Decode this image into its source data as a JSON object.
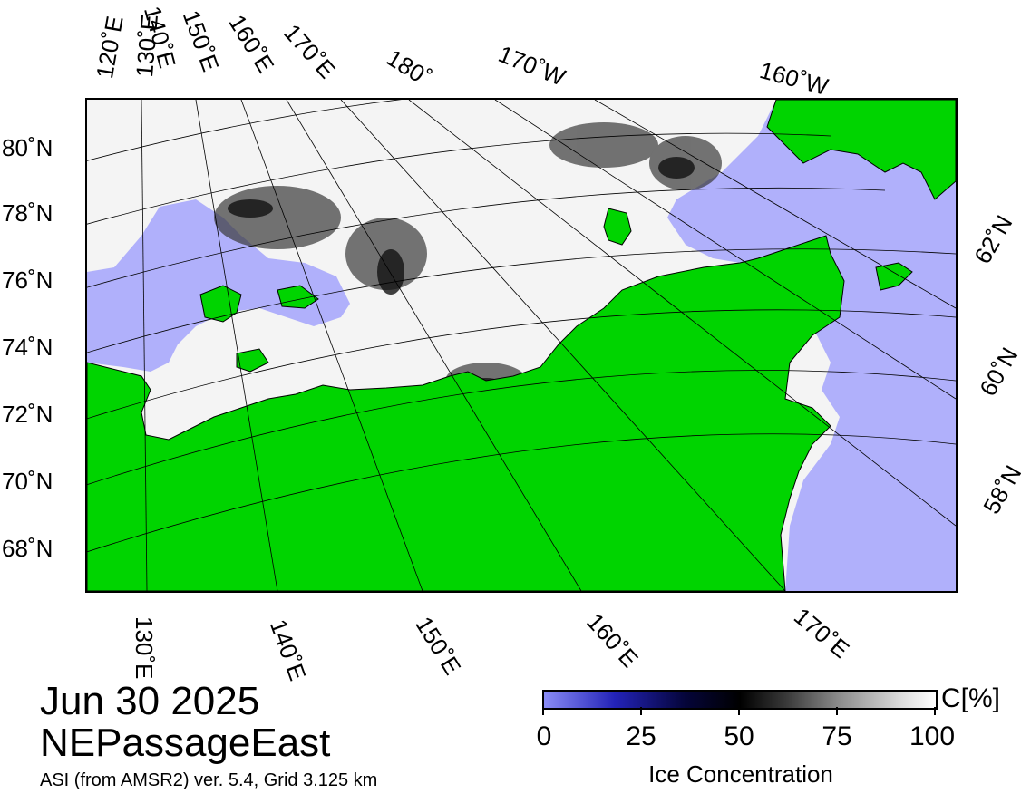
{
  "map": {
    "date": "Jun 30 2025",
    "region": "NEPassageEast",
    "source": "ASI (from AMSR2) ver. 5.4,  Grid 3.125 km",
    "colors": {
      "land": "#00d400",
      "ocean": "#b0b0fb",
      "ice_high": "#ffffff",
      "ice_low": "#000000"
    },
    "top_lon_labels": [
      "120˚E",
      "130˚E",
      "140˚E",
      "150˚E",
      "160˚E",
      "170˚E",
      "180˚",
      "170˚W",
      "160˚W"
    ],
    "left_lat_labels": [
      "80˚N",
      "78˚N",
      "76˚N",
      "74˚N",
      "72˚N",
      "70˚N",
      "68˚N"
    ],
    "right_lat_labels": [
      "62˚N",
      "60˚N",
      "58˚N"
    ],
    "bottom_lon_labels": [
      "130˚E",
      "140˚E",
      "150˚E",
      "160˚E",
      "170˚E"
    ]
  },
  "colorbar": {
    "title": "Ice Concentration",
    "unit": "C[%]",
    "ticks": [
      "0",
      "25",
      "50",
      "75",
      "100"
    ]
  }
}
